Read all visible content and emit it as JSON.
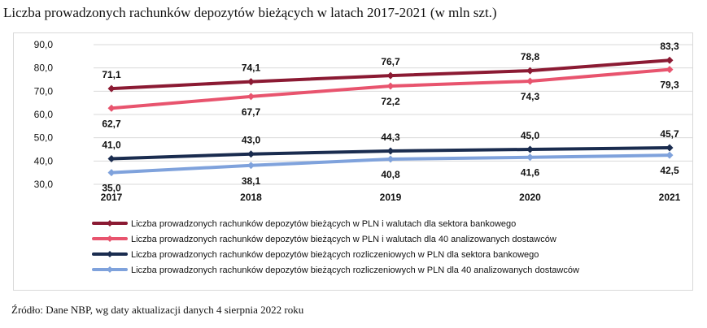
{
  "page": {
    "title": "Liczba prowadzonych rachunków depozytów bieżących w latach 2017-2021 (w mln szt.)",
    "source": "Źródło: Dane NBP, wg daty aktualizacji danych 4 sierpnia 2022 roku"
  },
  "chart_data": {
    "type": "line",
    "title": "Liczba prowadzonych rachunków depozytów bieżących w latach 2017-2021 (w mln szt.)",
    "xlabel": "",
    "ylabel": "",
    "categories": [
      "2017",
      "2018",
      "2019",
      "2020",
      "2021"
    ],
    "ylim": [
      30,
      90
    ],
    "yticks": [
      "30,0",
      "40,0",
      "50,0",
      "60,0",
      "70,0",
      "80,0",
      "90,0"
    ],
    "grid": true,
    "legend_position": "bottom",
    "series": [
      {
        "name": "Liczba prowadzonych rachunków depozytów bieżących w PLN i walutach dla sektora bankowego",
        "values": [
          71.1,
          74.1,
          76.7,
          78.8,
          83.3
        ],
        "labels": [
          "71,1",
          "74,1",
          "76,7",
          "78,8",
          "83,3"
        ],
        "label_position": "above",
        "color": "#8b1a33"
      },
      {
        "name": "Liczba prowadzonych rachunków depozytów bieżących w PLN i walutach dla 40 analizowanych dostawców",
        "values": [
          62.7,
          67.7,
          72.2,
          74.3,
          79.3
        ],
        "labels": [
          "62,7",
          "67,7",
          "72,2",
          "74,3",
          "79,3"
        ],
        "label_position": "below",
        "color": "#e8546e"
      },
      {
        "name": "Liczba prowadzonych rachunków depozytów bieżących rozliczeniowych w PLN dla sektora bankowego",
        "values": [
          41.0,
          43.0,
          44.3,
          45.0,
          45.7
        ],
        "labels": [
          "41,0",
          "43,0",
          "44,3",
          "45,0",
          "45,7"
        ],
        "label_position": "above",
        "color": "#1a2c4f"
      },
      {
        "name": "Liczba prowadzonych rachunków depozytów bieżących rozliczeniowych w PLN dla 40 analizowanych dostawców",
        "values": [
          35.0,
          38.1,
          40.8,
          41.6,
          42.5
        ],
        "labels": [
          "35,0",
          "38,1",
          "40,8",
          "41,6",
          "42,5"
        ],
        "label_position": "below",
        "color": "#7fa2dc"
      }
    ]
  }
}
